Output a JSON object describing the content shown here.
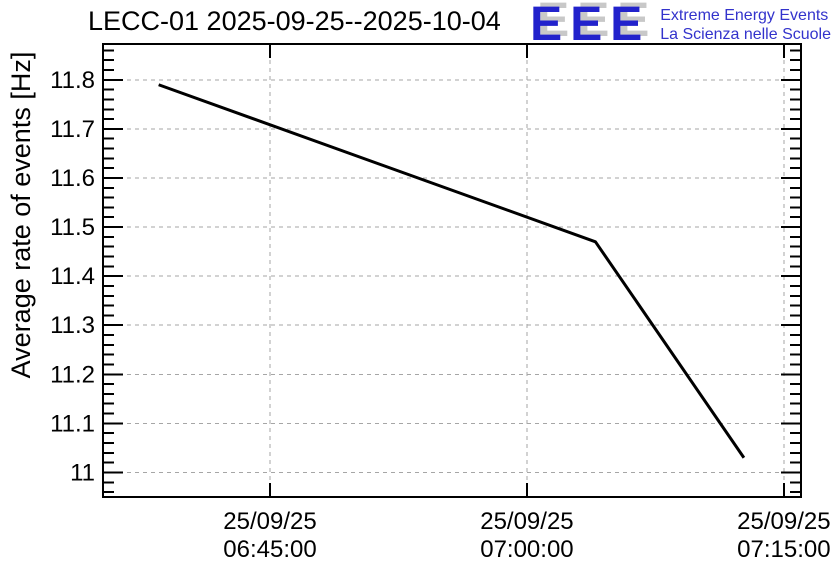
{
  "header": {
    "title": "LECC-01 2025-09-25--2025-10-04"
  },
  "logo": {
    "acronym": "EEE",
    "line1": "Extreme Energy Events",
    "line2": "La Scienza nelle Scuole",
    "accent_color": "#2222cc",
    "shadow_color": "#c8c8c8"
  },
  "chart_data": {
    "type": "line",
    "title": "LECC-01 2025-09-25--2025-10-04",
    "xlabel": "",
    "ylabel": "Average rate of events [Hz]",
    "ylim": [
      10.95,
      11.873
    ],
    "x_time_range": [
      "06:35:15",
      "07:16:00"
    ],
    "grid": "dashed",
    "legend": "none",
    "colors": {
      "line": "#000000",
      "grid": "#a6a6a6",
      "text": "#000000",
      "frame": "#000000"
    },
    "y_ticks": [
      {
        "value": 11.0,
        "label": "11"
      },
      {
        "value": 11.1,
        "label": "11.1"
      },
      {
        "value": 11.2,
        "label": "11.2"
      },
      {
        "value": 11.3,
        "label": "11.3"
      },
      {
        "value": 11.4,
        "label": "11.4"
      },
      {
        "value": 11.5,
        "label": "11.5"
      },
      {
        "value": 11.6,
        "label": "11.6"
      },
      {
        "value": 11.7,
        "label": "11.7"
      },
      {
        "value": 11.8,
        "label": "11.8"
      }
    ],
    "y_minor_step": 0.02,
    "x_ticks": [
      {
        "date": "25/09/25",
        "time": "06:45:00"
      },
      {
        "date": "25/09/25",
        "time": "07:00:00"
      },
      {
        "date": "25/09/25",
        "time": "07:15:00"
      }
    ],
    "points": [
      {
        "date": "25/09/25",
        "time": "06:38:30",
        "value": 11.79
      },
      {
        "date": "25/09/25",
        "time": "07:04:00",
        "value": 11.47
      },
      {
        "date": "25/09/25",
        "time": "07:12:40",
        "value": 11.03
      }
    ]
  }
}
